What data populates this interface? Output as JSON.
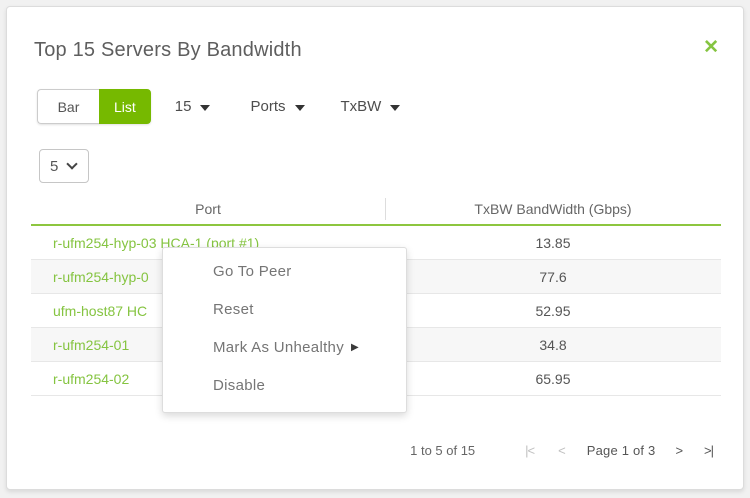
{
  "panel": {
    "title": "Top 15 Servers By Bandwidth"
  },
  "icons": {
    "close": "✕",
    "submenu_arrow": "▶",
    "pager_first": "|<",
    "pager_prev": "<",
    "pager_next": ">",
    "pager_last": ">|"
  },
  "toolbar": {
    "view_toggle": [
      {
        "label": "Bar",
        "active": false
      },
      {
        "label": "List",
        "active": true
      }
    ],
    "dropdowns": [
      {
        "label": "15"
      },
      {
        "label": "Ports"
      },
      {
        "label": "TxBW"
      }
    ]
  },
  "page_size_select": {
    "value": "5"
  },
  "table": {
    "columns": [
      "Port",
      "TxBW BandWidth (Gbps)"
    ],
    "rows": [
      {
        "port": "r-ufm254-hyp-03 HCA-1 (port #1)",
        "value": "13.85"
      },
      {
        "port": "r-ufm254-hyp-0",
        "value": "77.6"
      },
      {
        "port": "ufm-host87 HC",
        "value": "52.95"
      },
      {
        "port": "r-ufm254-01",
        "value": "34.8"
      },
      {
        "port": "r-ufm254-02",
        "value": "65.95"
      }
    ]
  },
  "context_menu": {
    "items": [
      {
        "label": "Go To Peer",
        "has_submenu": false
      },
      {
        "label": "Reset",
        "has_submenu": false
      },
      {
        "label": "Mark As Unhealthy",
        "has_submenu": true
      },
      {
        "label": "Disable",
        "has_submenu": false
      }
    ]
  },
  "pagination": {
    "range_text": "1 to 5 of 15",
    "page_text": "Page 1 of 3"
  },
  "colors": {
    "accent_green": "#76b900",
    "link_green": "#85c441",
    "header_rule_green": "#8dc63f"
  }
}
